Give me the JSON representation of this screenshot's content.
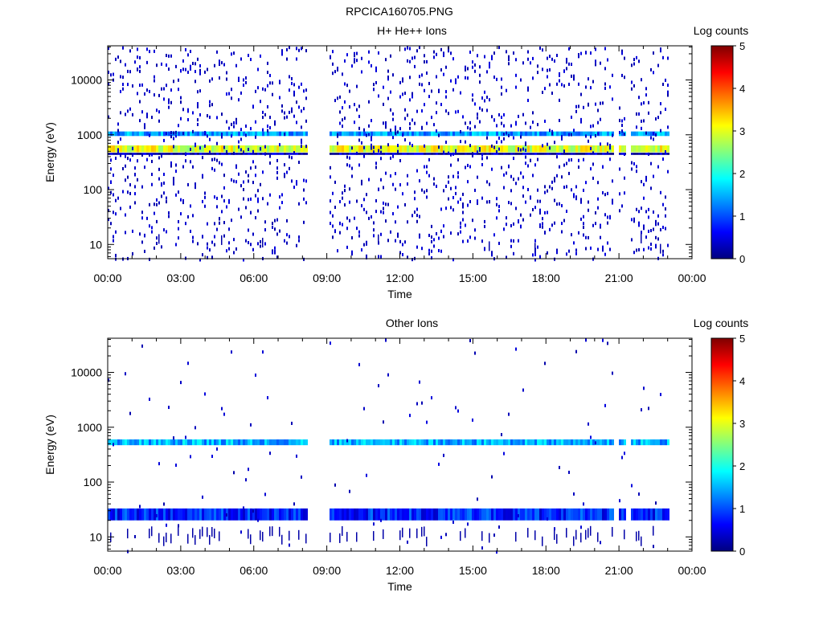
{
  "title": "RPCICA160705.PNG",
  "colorbar_stops": [
    "#00007f",
    "#0000ff",
    "#0080ff",
    "#00ffff",
    "#80ff80",
    "#ffff00",
    "#ff8000",
    "#ff0000",
    "#7f0000"
  ],
  "chart_data": [
    {
      "type": "heatmap",
      "title": "H+ He++ Ions",
      "xlabel": "Time",
      "ylabel": "Energy (eV)",
      "x_ticks": [
        "00:00",
        "03:00",
        "06:00",
        "09:00",
        "12:00",
        "15:00",
        "18:00",
        "21:00",
        "00:00"
      ],
      "x_range_hours": [
        0,
        24
      ],
      "y_scale": "log",
      "y_range": [
        5.5,
        42000
      ],
      "y_ticks": [
        {
          "value": 10,
          "label": "10"
        },
        {
          "value": 100,
          "label": "100"
        },
        {
          "value": 1000,
          "label": "1000"
        },
        {
          "value": 10000,
          "label": "10000"
        }
      ],
      "colorbar": {
        "label": "Log counts",
        "range": [
          0,
          5
        ],
        "ticks": [
          "0",
          "1",
          "2",
          "3",
          "4",
          "5"
        ]
      },
      "data_gaps_hours": [
        [
          8.2,
          9.15
        ],
        [
          20.75,
          21.0
        ],
        [
          21.25,
          21.45
        ]
      ],
      "data_end_hours": 23.1,
      "bands": [
        {
          "energy_min": 480,
          "energy_max": 640,
          "log_counts": 3.0
        },
        {
          "energy_min": 430,
          "energy_max": 470,
          "log_counts": 0.2
        },
        {
          "energy_min": 950,
          "energy_max": 1150,
          "log_counts": 1.4
        }
      ]
    },
    {
      "type": "heatmap",
      "title": "Other Ions",
      "xlabel": "Time",
      "ylabel": "Energy (eV)",
      "x_ticks": [
        "00:00",
        "03:00",
        "06:00",
        "09:00",
        "12:00",
        "15:00",
        "18:00",
        "21:00",
        "00:00"
      ],
      "x_range_hours": [
        0,
        24
      ],
      "y_scale": "log",
      "y_range": [
        5.5,
        42000
      ],
      "y_ticks": [
        {
          "value": 10,
          "label": "10"
        },
        {
          "value": 100,
          "label": "100"
        },
        {
          "value": 1000,
          "label": "1000"
        },
        {
          "value": 10000,
          "label": "10000"
        }
      ],
      "colorbar": {
        "label": "Log counts",
        "range": [
          0,
          5
        ],
        "ticks": [
          "0",
          "1",
          "2",
          "3",
          "4",
          "5"
        ]
      },
      "data_gaps_hours": [
        [
          8.2,
          9.15
        ],
        [
          20.75,
          21.0
        ],
        [
          21.25,
          21.45
        ]
      ],
      "data_end_hours": 23.1,
      "bands": [
        {
          "energy_min": 470,
          "energy_max": 600,
          "log_counts": 1.5
        },
        {
          "energy_min": 20,
          "energy_max": 33,
          "log_counts": 0.8
        }
      ]
    }
  ]
}
